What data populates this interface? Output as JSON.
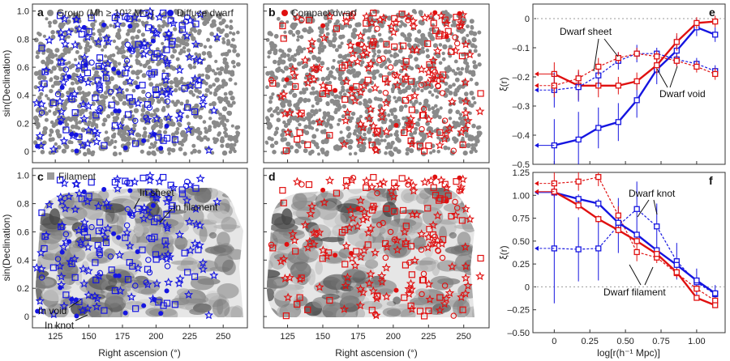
{
  "figure": {
    "x_label_left": "Right ascension (°)",
    "x_label_mid": "Right ascension (°)",
    "y_label_top": "sin(Declination)",
    "y_label_bottom": "sin(Declination)",
    "x_label_right": "log[r(h⁻¹ Mpc)]",
    "y_label_e": "ξ(r)",
    "y_label_f": "ξ(r)"
  },
  "panels": {
    "a": {
      "letter": "a",
      "legend_group": "Group (Mh ≥ 10¹² M☉)",
      "legend_dwarf": "Diffuse dwarf"
    },
    "b": {
      "letter": "b",
      "legend_dwarf": "Compact dwarf"
    },
    "c": {
      "letter": "c",
      "legend_filament": "Filament",
      "annotations": [
        "In sheet",
        "In filament",
        "In void",
        "In knot"
      ]
    },
    "d": {
      "letter": "d"
    },
    "e": {
      "letter": "e",
      "annotations": [
        "Dwarf sheet",
        "Dwarf void"
      ]
    },
    "f": {
      "letter": "f",
      "annotations": [
        "Dwarf knot",
        "Dwarf filament"
      ]
    }
  },
  "colors": {
    "diffuse": "#1515e0",
    "compact": "#e01010",
    "group": "#8a8a8a"
  },
  "sky_axes": {
    "x_ticks": [
      125,
      150,
      175,
      200,
      225,
      250
    ],
    "x_range": [
      108,
      268
    ],
    "y_ticks": [
      0,
      0.2,
      0.4,
      0.6,
      0.8,
      1.0
    ],
    "y_range": [
      -0.08,
      1.05
    ],
    "y_tick_labels": [
      "0",
      "0.2",
      "0.4",
      "0.6",
      "0.8",
      "1.0"
    ]
  },
  "chart_data": [
    {
      "panel": "e",
      "type": "line",
      "xlabel": "log[r(h⁻¹ Mpc)]",
      "ylabel": "ξ(r)",
      "xlim": [
        -0.15,
        1.2
      ],
      "ylim": [
        -0.5,
        0.05
      ],
      "x_ticks": [
        0,
        0.25,
        0.5,
        0.75,
        1.0
      ],
      "y_ticks": [
        0,
        -0.1,
        -0.2,
        -0.3,
        -0.4,
        -0.5
      ],
      "series": [
        {
          "name": "Dwarf void",
          "color": "#1515e0",
          "style": "solid",
          "x": [
            0,
            0.17,
            0.31,
            0.45,
            0.58,
            0.72,
            0.86,
            1.0,
            1.13
          ],
          "y": [
            -0.435,
            -0.415,
            -0.375,
            -0.355,
            -0.28,
            -0.175,
            -0.11,
            -0.03,
            -0.055
          ],
          "err": [
            0.09,
            0.095,
            0.07,
            0.065,
            0.06,
            0.05,
            0.05,
            0.03,
            0.025
          ]
        },
        {
          "name": "",
          "color": "#e01010",
          "style": "solid",
          "x": [
            0,
            0.17,
            0.31,
            0.45,
            0.58,
            0.72,
            0.86,
            1.0,
            1.13
          ],
          "y": [
            -0.19,
            -0.23,
            -0.23,
            -0.23,
            -0.215,
            -0.16,
            -0.08,
            -0.015,
            -0.01
          ],
          "err": [
            0.04,
            0.05,
            0.04,
            0.03,
            0.03,
            0.03,
            0.03,
            0.02,
            0.02
          ]
        },
        {
          "name": "Dwarf sheet",
          "color": "#1515e0",
          "style": "dashed",
          "x": [
            0,
            0.17,
            0.31,
            0.45,
            0.58,
            0.72,
            0.86,
            1.0,
            1.13
          ],
          "y": [
            -0.245,
            -0.235,
            -0.195,
            -0.145,
            -0.12,
            -0.12,
            -0.14,
            -0.155,
            -0.18
          ],
          "err": [
            0.06,
            0.05,
            0.04,
            0.03,
            0.03,
            0.02,
            0.02,
            0.02,
            0.02
          ]
        },
        {
          "name": "",
          "color": "#e01010",
          "style": "dashed",
          "x": [
            0,
            0.17,
            0.31,
            0.45,
            0.58,
            0.72,
            0.86,
            1.0,
            1.13
          ],
          "y": [
            -0.23,
            -0.205,
            -0.165,
            -0.135,
            -0.12,
            -0.13,
            -0.145,
            -0.165,
            -0.19
          ],
          "err": [
            0.04,
            0.03,
            0.03,
            0.02,
            0.02,
            0.02,
            0.02,
            0.02,
            0.02
          ]
        }
      ]
    },
    {
      "panel": "f",
      "type": "line",
      "xlabel": "log[r(h⁻¹ Mpc)]",
      "ylabel": "ξ(r)",
      "xlim": [
        -0.15,
        1.2
      ],
      "ylim": [
        -0.5,
        1.25
      ],
      "x_ticks": [
        0,
        0.25,
        0.5,
        0.75,
        1.0
      ],
      "y_ticks": [
        1.25,
        1.0,
        0.75,
        0.5,
        0.25,
        0,
        -0.25,
        -0.5
      ],
      "y_tick_labels": [
        "1.25",
        "1.00",
        "0.75",
        "0.50",
        "0.25",
        "0",
        "–0.25",
        "–0.50"
      ],
      "series": [
        {
          "name": "Dwarf knot",
          "color": "#1515e0",
          "style": "dashed",
          "x": [
            0,
            0.17,
            0.31,
            0.45,
            0.58,
            0.72,
            0.86,
            1.0,
            1.13
          ],
          "y": [
            0.42,
            0.41,
            0.42,
            0.67,
            0.85,
            0.66,
            0.28,
            0.05,
            -0.08
          ],
          "err": [
            0.6,
            0.35,
            0.35,
            0.3,
            0.3,
            0.25,
            0.2,
            0.15,
            0.1
          ]
        },
        {
          "name": "",
          "color": "#e01010",
          "style": "dashed",
          "x": [
            0,
            0.17,
            0.31,
            0.45,
            0.58,
            0.72,
            0.86,
            1.0,
            1.13
          ],
          "y": [
            1.13,
            1.15,
            1.2,
            0.78,
            0.38,
            0.32,
            0.15,
            -0.02,
            -0.15
          ],
          "err": [
            0.12,
            0.1,
            0.1,
            0.1,
            0.1,
            0.06,
            0.05,
            0.04,
            0.03
          ]
        },
        {
          "name": "",
          "color": "#1515e0",
          "style": "solid",
          "x": [
            0,
            0.17,
            0.31,
            0.45,
            0.58,
            0.72,
            0.86,
            1.0,
            1.13
          ],
          "y": [
            1.03,
            0.96,
            0.91,
            0.7,
            0.57,
            0.4,
            0.24,
            0.07,
            -0.07
          ],
          "err": [
            0.05,
            0.05,
            0.05,
            0.05,
            0.04,
            0.04,
            0.03,
            0.03,
            0.03
          ]
        },
        {
          "name": "Dwarf filament",
          "color": "#e01010",
          "style": "solid",
          "x": [
            0,
            0.17,
            0.31,
            0.45,
            0.58,
            0.72,
            0.86,
            1.0,
            1.13
          ],
          "y": [
            1.04,
            0.89,
            0.74,
            0.62,
            0.5,
            0.36,
            0.16,
            -0.12,
            -0.2
          ],
          "err": [
            0.05,
            0.05,
            0.04,
            0.04,
            0.04,
            0.03,
            0.03,
            0.03,
            0.02
          ]
        }
      ]
    }
  ]
}
